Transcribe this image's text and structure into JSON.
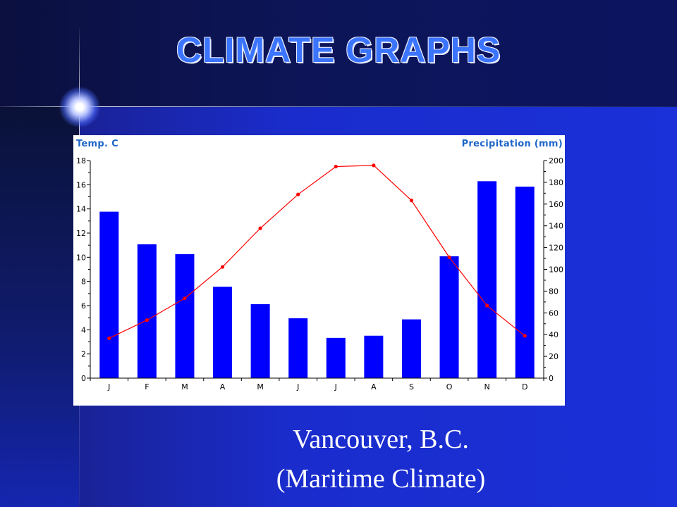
{
  "slide": {
    "title": "CLIMATE GRAPHS",
    "caption_line1": "Vancouver, B.C.",
    "caption_line2": "(Maritime Climate)"
  },
  "chart_data": {
    "type": "bar",
    "categories": [
      "J",
      "F",
      "M",
      "A",
      "M",
      "J",
      "J",
      "A",
      "S",
      "O",
      "N",
      "D"
    ],
    "left_axis_title": "Temp. C",
    "right_axis_title": "Precipitation (mm)",
    "temp_axis": {
      "min": 0,
      "max": 18,
      "ticks": [
        0,
        2,
        4,
        6,
        8,
        10,
        12,
        14,
        16,
        18
      ]
    },
    "precip_axis": {
      "min": 0,
      "max": 200,
      "ticks": [
        0,
        20,
        40,
        60,
        80,
        100,
        120,
        140,
        160,
        180,
        200
      ]
    },
    "series": [
      {
        "type": "bar",
        "axis": "right",
        "values": [
          153,
          123,
          114,
          84,
          68,
          55,
          37,
          39,
          54,
          112,
          181,
          176
        ],
        "color": "#0000ff"
      },
      {
        "type": "line",
        "axis": "left",
        "values": [
          3.3,
          4.8,
          6.6,
          9.2,
          12.4,
          15.2,
          17.5,
          17.6,
          14.7,
          10.0,
          6.0,
          3.5
        ],
        "color": "#ff0000"
      }
    ],
    "grid": false
  }
}
